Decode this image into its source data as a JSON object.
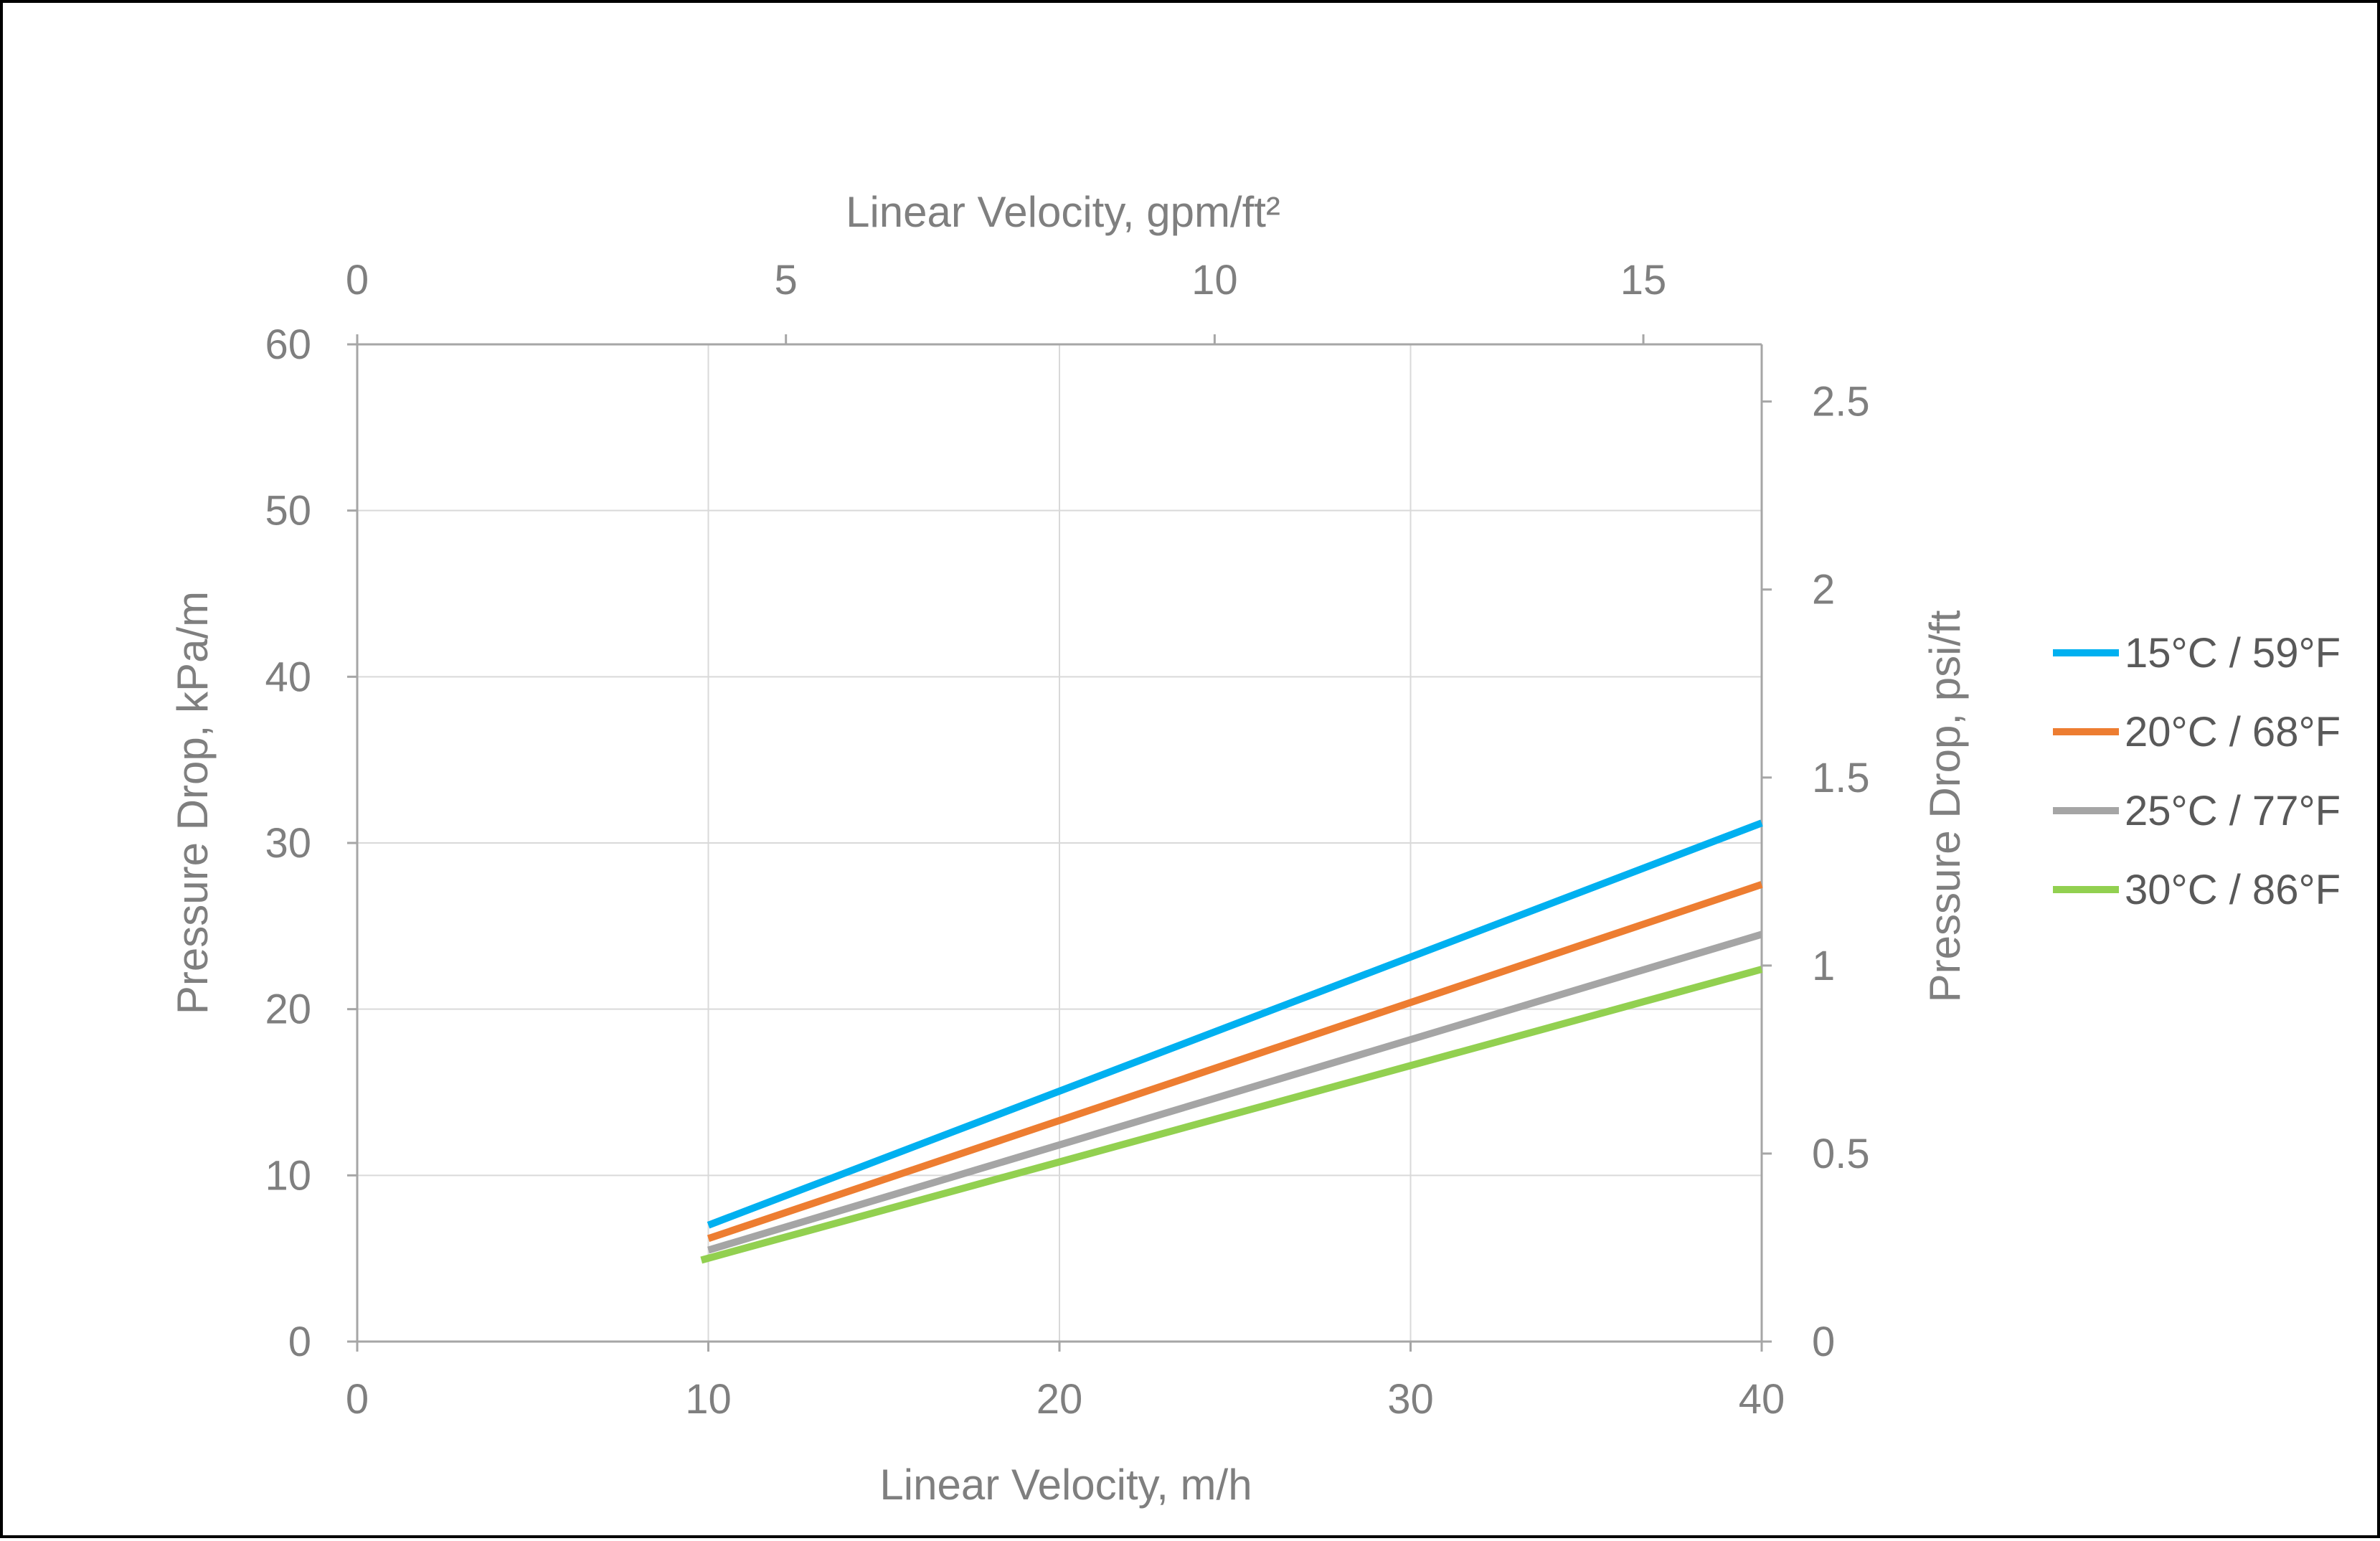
{
  "chart_data": {
    "type": "line",
    "title": "",
    "bottom_axis": {
      "label": "Linear Velocity, m/h",
      "min": 0,
      "max": 40,
      "ticks": [
        0,
        10,
        20,
        30,
        40
      ],
      "tick_labels": [
        "0",
        "10",
        "20",
        "30",
        "40"
      ]
    },
    "top_axis": {
      "label": "Linear Velocity, gpm/ft²",
      "min": 0,
      "max": 16.38,
      "ticks": [
        0,
        5,
        10,
        15
      ],
      "tick_labels": [
        "0",
        "5",
        "10",
        "15"
      ]
    },
    "left_axis": {
      "label": "Pressure Drop, kPa/m",
      "min": 0,
      "max": 60,
      "ticks": [
        0,
        10,
        20,
        30,
        40,
        50,
        60
      ],
      "tick_labels": [
        "0",
        "10",
        "20",
        "30",
        "40",
        "50",
        "60"
      ]
    },
    "right_axis": {
      "label": "Pressure Drop, psi/ft",
      "min": 0,
      "max": 2.652,
      "ticks": [
        0,
        0.5,
        1,
        1.5,
        2,
        2.5
      ],
      "tick_labels": [
        "0",
        "0.5",
        "1",
        "1.5",
        "2",
        "2.5"
      ]
    },
    "gridlines": true,
    "legend_position": "right",
    "series": [
      {
        "name": "15°C / 59°F",
        "color": "#00b0f0",
        "x": [
          10,
          40
        ],
        "y": [
          7.0,
          31.2
        ]
      },
      {
        "name": "20°C / 68°F",
        "color": "#ed7d31",
        "x": [
          10,
          40
        ],
        "y": [
          6.2,
          27.5
        ]
      },
      {
        "name": "25°C / 77°F",
        "color": "#a5a5a5",
        "x": [
          10,
          40
        ],
        "y": [
          5.5,
          24.5
        ]
      },
      {
        "name": "30°C / 86°F",
        "color": "#92d050",
        "x": [
          9.8,
          40
        ],
        "y": [
          4.9,
          22.4
        ]
      }
    ]
  }
}
